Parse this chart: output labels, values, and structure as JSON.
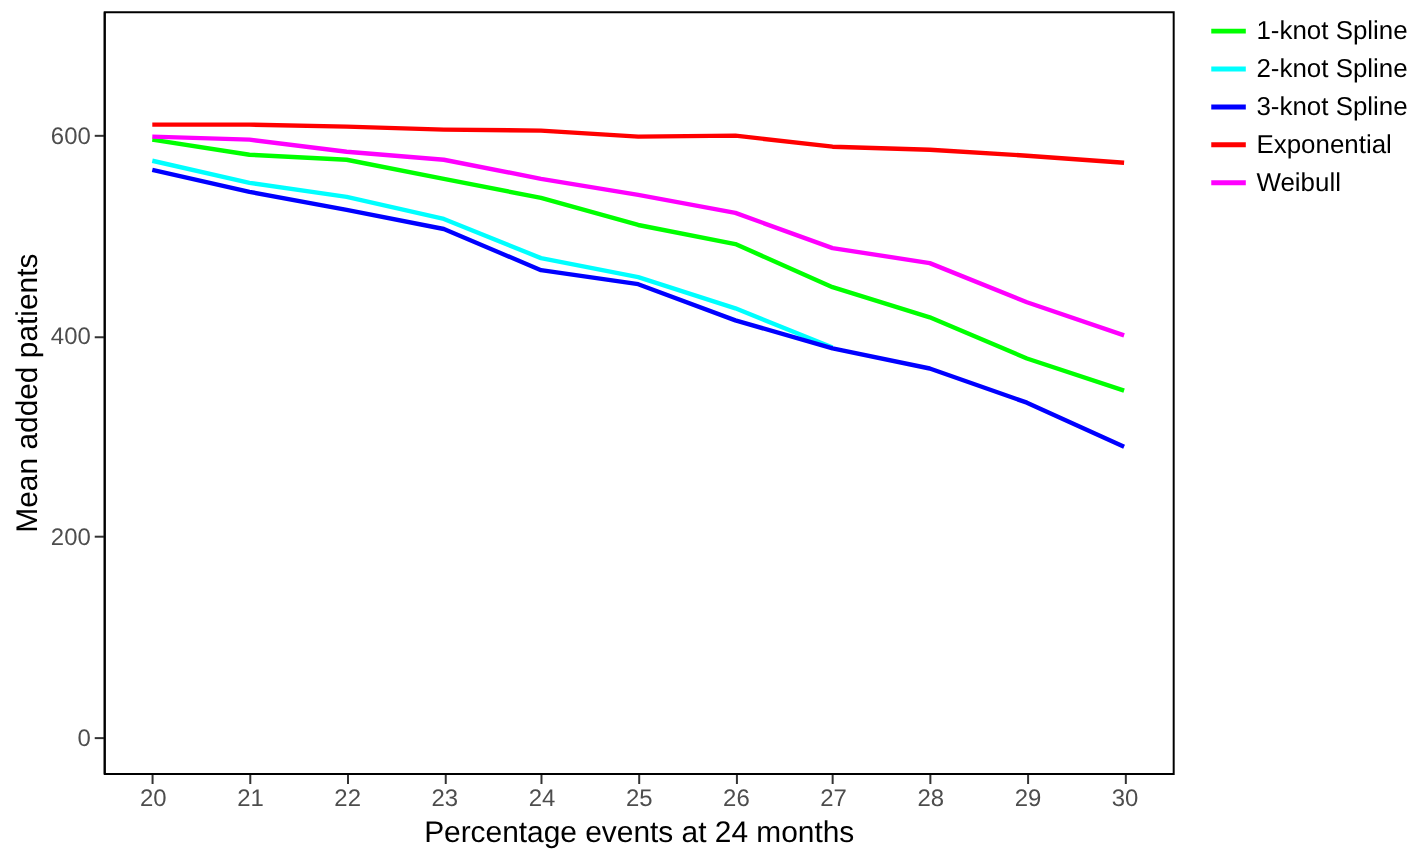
{
  "chart_data": {
    "type": "line",
    "xlabel": "Percentage events at 24 months",
    "ylabel": "Mean added patients",
    "x": [
      20,
      21,
      22,
      23,
      24,
      25,
      26,
      27,
      28,
      29,
      30
    ],
    "xlim": [
      19.5,
      30.5
    ],
    "xticks": [
      20,
      21,
      22,
      23,
      24,
      25,
      26,
      27,
      28,
      29,
      30
    ],
    "ylim": [
      -36,
      723
    ],
    "yticks": [
      0,
      200,
      400,
      600
    ],
    "grid": false,
    "legend": "right",
    "marker": "none",
    "line_style": "solid",
    "series": [
      {
        "name": "1-knot Spline",
        "color": "#00ff00",
        "values": [
          595,
          580,
          575,
          556,
          537,
          510,
          491,
          448,
          418,
          377,
          345
        ]
      },
      {
        "name": "2-knot Spline",
        "color": "#00ffff",
        "values": [
          574,
          552,
          538,
          516,
          477,
          458,
          427,
          388,
          null,
          null,
          null
        ]
      },
      {
        "name": "3-knot Spline",
        "color": "#0000ff",
        "values": [
          565,
          543,
          525,
          506,
          465,
          451,
          415,
          387,
          367,
          333,
          289
        ]
      },
      {
        "name": "Exponential",
        "color": "#ff0000",
        "values": [
          610,
          610,
          608,
          605,
          604,
          598,
          599,
          588,
          585,
          579,
          572
        ]
      },
      {
        "name": "Weibull",
        "color": "#ff00ff",
        "values": [
          598,
          595,
          583,
          575,
          556,
          540,
          522,
          487,
          472,
          433,
          400
        ]
      }
    ]
  }
}
